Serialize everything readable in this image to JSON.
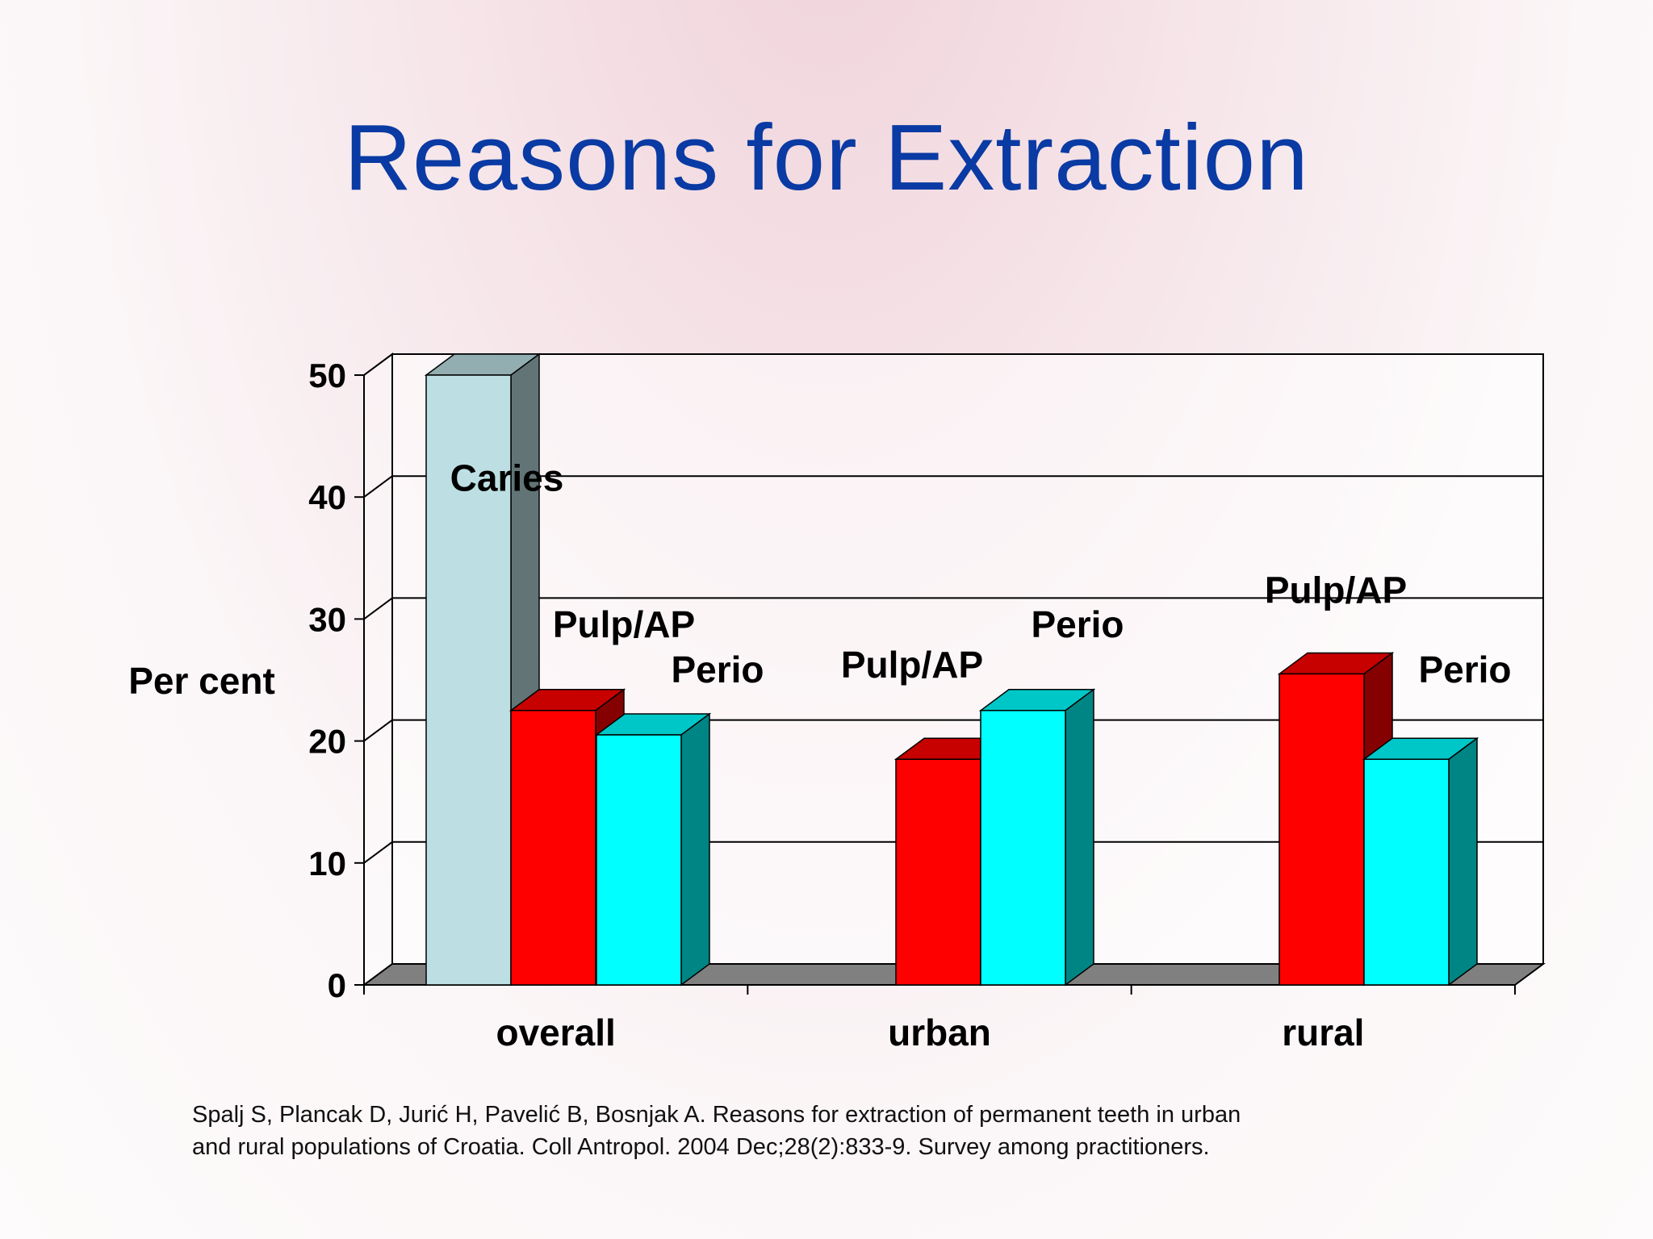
{
  "title": "Reasons for Extraction",
  "citation": {
    "line1": "Spalj S, Plancak D, Jurić H, Pavelić B, Bosnjak A. Reasons for extraction of permanent teeth in urban",
    "line2": "and rural populations of Croatia. Coll Antropol. 2004 Dec;28(2):833-9. Survey among practitioners."
  },
  "chart_data": {
    "type": "bar",
    "style": "3d",
    "title": "Reasons for Extraction",
    "xlabel": "",
    "ylabel": "Per cent",
    "ylim": [
      0,
      50
    ],
    "yticks": [
      0,
      10,
      20,
      30,
      40,
      50
    ],
    "grid": true,
    "categories": [
      "overall",
      "urban",
      "rural"
    ],
    "bars": [
      {
        "category": "overall",
        "label": "Caries",
        "value": 50,
        "color": "#bddfe3"
      },
      {
        "category": "overall",
        "label": "Pulp/AP",
        "value": 22.5,
        "color": "#ff0000"
      },
      {
        "category": "overall",
        "label": "Perio",
        "value": 20.5,
        "color": "#00ffff"
      },
      {
        "category": "urban",
        "label": "Pulp/AP",
        "value": 18.5,
        "color": "#ff0000"
      },
      {
        "category": "urban",
        "label": "Perio",
        "value": 22.5,
        "color": "#00ffff"
      },
      {
        "category": "rural",
        "label": "Pulp/AP",
        "value": 25.5,
        "color": "#ff0000"
      },
      {
        "category": "rural",
        "label": "Perio",
        "value": 18.5,
        "color": "#00ffff"
      }
    ]
  }
}
